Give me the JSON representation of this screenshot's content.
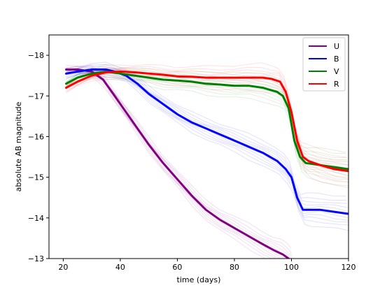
{
  "chart_data": {
    "type": "line",
    "title": "",
    "xlabel": "time (days)",
    "ylabel": "absolute AB magnitude",
    "xlim": [
      15,
      120
    ],
    "ylim": [
      -13,
      -18.5
    ],
    "y_inverted": true,
    "grid": false,
    "legend_position": "top-right",
    "x_ticks": [
      20,
      40,
      60,
      80,
      100,
      120
    ],
    "y_ticks": [
      -18,
      -17,
      -16,
      -15,
      -14,
      -13
    ],
    "x_tick_labels": [
      "20",
      "40",
      "60",
      "80",
      "100",
      "120"
    ],
    "y_tick_labels": [
      "−18",
      "−17",
      "−16",
      "−15",
      "−14",
      "−13"
    ],
    "series": [
      {
        "name": "U",
        "color": "#800080",
        "x": [
          21,
          25,
          30,
          34,
          38,
          42,
          46,
          50,
          55,
          60,
          65,
          70,
          75,
          80,
          85,
          90,
          94,
          97,
          99,
          100.5
        ],
        "y": [
          -17.65,
          -17.65,
          -17.6,
          -17.4,
          -17.0,
          -16.6,
          -16.2,
          -15.8,
          -15.35,
          -14.95,
          -14.55,
          -14.2,
          -13.95,
          -13.75,
          -13.55,
          -13.35,
          -13.2,
          -13.1,
          -13.0,
          -12.9
        ]
      },
      {
        "name": "B",
        "color": "#0000ff",
        "x": [
          21,
          25,
          30,
          35,
          38,
          42,
          46,
          50,
          55,
          60,
          65,
          70,
          75,
          80,
          85,
          90,
          95,
          98,
          100,
          102,
          104,
          106,
          110,
          115,
          120
        ],
        "y": [
          -17.55,
          -17.6,
          -17.65,
          -17.65,
          -17.6,
          -17.5,
          -17.3,
          -17.05,
          -16.8,
          -16.55,
          -16.35,
          -16.2,
          -16.05,
          -15.9,
          -15.75,
          -15.6,
          -15.4,
          -15.2,
          -15.0,
          -14.5,
          -14.2,
          -14.2,
          -14.2,
          -14.15,
          -14.1
        ]
      },
      {
        "name": "V",
        "color": "#008000",
        "x": [
          21,
          25,
          30,
          35,
          40,
          45,
          50,
          55,
          60,
          65,
          70,
          75,
          80,
          85,
          90,
          95,
          97,
          99,
          101,
          103,
          105,
          110,
          115,
          120
        ],
        "y": [
          -17.3,
          -17.45,
          -17.55,
          -17.6,
          -17.55,
          -17.5,
          -17.45,
          -17.4,
          -17.38,
          -17.35,
          -17.3,
          -17.28,
          -17.25,
          -17.25,
          -17.2,
          -17.1,
          -17.0,
          -16.7,
          -15.9,
          -15.5,
          -15.35,
          -15.3,
          -15.25,
          -15.2
        ]
      },
      {
        "name": "R",
        "color": "#ff0000",
        "x": [
          21,
          25,
          30,
          35,
          40,
          45,
          50,
          55,
          60,
          65,
          70,
          75,
          80,
          85,
          90,
          93,
          96,
          98,
          100,
          102,
          104,
          106,
          110,
          115,
          120
        ],
        "y": [
          -17.2,
          -17.35,
          -17.5,
          -17.58,
          -17.6,
          -17.58,
          -17.55,
          -17.52,
          -17.48,
          -17.47,
          -17.45,
          -17.45,
          -17.45,
          -17.45,
          -17.45,
          -17.42,
          -17.35,
          -17.1,
          -16.6,
          -15.9,
          -15.5,
          -15.4,
          -15.3,
          -15.2,
          -15.15
        ]
      }
    ]
  }
}
